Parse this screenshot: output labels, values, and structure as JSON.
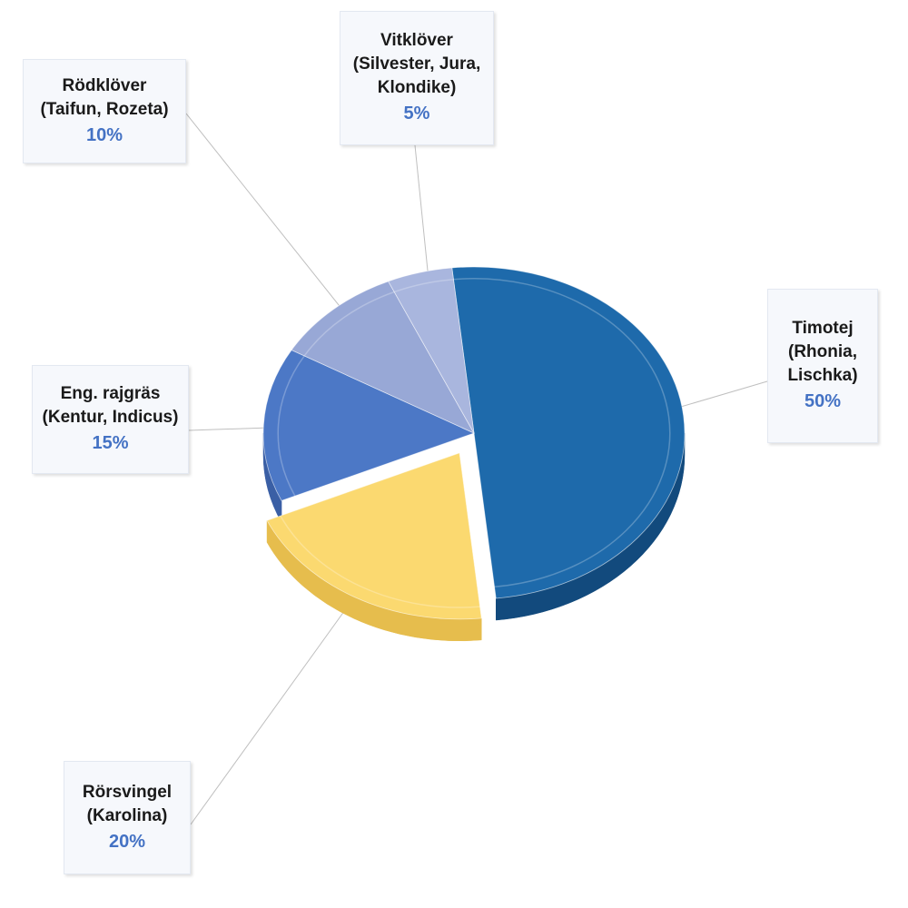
{
  "chart_data": {
    "type": "pie",
    "title": "",
    "slices": [
      {
        "key": "timotej",
        "lines": [
          "Timotej",
          "(Rhonia,",
          "Lischka)"
        ],
        "value": 50,
        "value_label": "50%",
        "color": "#1e6aab",
        "side_color": "#124a7d"
      },
      {
        "key": "rorsvingel",
        "lines": [
          "Rörsvingel",
          "(Karolina)"
        ],
        "value": 20,
        "value_label": "20%",
        "color": "#fbd970",
        "side_color": "#e6bd4d",
        "exploded": true
      },
      {
        "key": "eng-rajgras",
        "lines": [
          "Eng. rajgräs",
          "(Kentur, Indicus)"
        ],
        "value": 15,
        "value_label": "15%",
        "color": "#4c78c6",
        "side_color": "#3a5fa5"
      },
      {
        "key": "rodklover",
        "lines": [
          "Rödklöver",
          "(Taifun, Rozeta)"
        ],
        "value": 10,
        "value_label": "10%",
        "color": "#98a8d6",
        "side_color": "#7a8cc0"
      },
      {
        "key": "vitklover",
        "lines": [
          "Vitklöver",
          "(Silvester, Jura,",
          "Klondike)"
        ],
        "value": 5,
        "value_label": "5%",
        "color": "#a9b6de",
        "side_color": "#8a9ac8"
      }
    ],
    "legend": "none",
    "data_labels": "callouts"
  }
}
